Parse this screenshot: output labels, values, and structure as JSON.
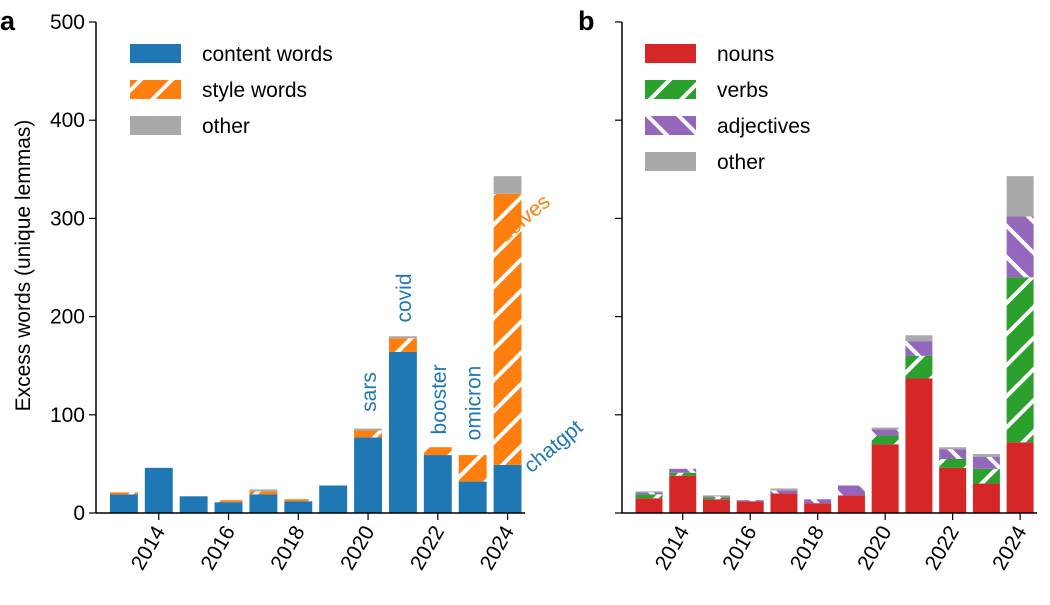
{
  "colors": {
    "content": "#1f77b4",
    "style": "#ff7f0e",
    "other": "#a9a9a9",
    "nouns": "#d62728",
    "verbs": "#2ca02c",
    "adjectives": "#9467bd",
    "hatch": "#ffffff"
  },
  "chart_data": [
    {
      "panel": "a",
      "type": "bar",
      "stacked": true,
      "ylabel": "Excess words (unique lemmas)",
      "ylim": [
        0,
        500
      ],
      "yticks": [
        0,
        100,
        200,
        300,
        400,
        500
      ],
      "x": [
        2013,
        2014,
        2015,
        2016,
        2017,
        2018,
        2019,
        2020,
        2021,
        2022,
        2023,
        2024
      ],
      "xticks": [
        2014,
        2016,
        2018,
        2020,
        2022,
        2024
      ],
      "legend_position": "top-left",
      "series": [
        {
          "name": "content words",
          "key": "content",
          "hatch": "none",
          "values": [
            19,
            46,
            17,
            11,
            19,
            12,
            28,
            77,
            164,
            59,
            32,
            49
          ]
        },
        {
          "name": "style words",
          "key": "style",
          "hatch": "slash",
          "values": [
            2,
            0,
            0,
            2,
            3,
            2,
            0,
            7,
            14,
            8,
            27,
            276
          ]
        },
        {
          "name": "other",
          "key": "other",
          "hatch": "none",
          "values": [
            0,
            0,
            0,
            0,
            2,
            0,
            0,
            2,
            2,
            0,
            0,
            18
          ]
        }
      ],
      "annotations": [
        {
          "text": "sars",
          "x": 2020,
          "y": 103,
          "color_key": "content"
        },
        {
          "text": "covid",
          "x": 2021,
          "y": 194,
          "color_key": "content"
        },
        {
          "text": "booster",
          "x": 2022,
          "y": 80,
          "color_key": "content"
        },
        {
          "text": "omicron",
          "x": 2023,
          "y": 74,
          "color_key": "content"
        },
        {
          "text": "delves",
          "x": 2023.7,
          "y": 275,
          "color_key": "style"
        },
        {
          "text": "chatgpt",
          "x": 2024.45,
          "y": 40,
          "color_key": "content"
        }
      ]
    },
    {
      "panel": "b",
      "type": "bar",
      "stacked": true,
      "ylim": [
        0,
        500
      ],
      "yticks": [
        0,
        100,
        200,
        300,
        400,
        500
      ],
      "x": [
        2013,
        2014,
        2015,
        2016,
        2017,
        2018,
        2019,
        2020,
        2021,
        2022,
        2023,
        2024
      ],
      "xticks": [
        2014,
        2016,
        2018,
        2020,
        2022,
        2024
      ],
      "legend_position": "top-left",
      "series": [
        {
          "name": "nouns",
          "key": "nouns",
          "hatch": "none",
          "values": [
            15,
            38,
            14,
            12,
            20,
            10,
            18,
            70,
            137,
            46,
            30,
            72
          ]
        },
        {
          "name": "verbs",
          "key": "verbs",
          "hatch": "slash",
          "values": [
            4,
            3,
            2,
            0,
            0,
            0,
            0,
            9,
            23,
            9,
            15,
            168
          ]
        },
        {
          "name": "adjectives",
          "key": "adjectives",
          "hatch": "backslash",
          "values": [
            2,
            4,
            1,
            1,
            3,
            4,
            10,
            6,
            15,
            10,
            12,
            62
          ]
        },
        {
          "name": "other",
          "key": "other",
          "hatch": "none",
          "values": [
            1,
            0,
            1,
            0,
            2,
            0,
            0,
            2,
            6,
            2,
            3,
            41
          ]
        }
      ]
    }
  ]
}
